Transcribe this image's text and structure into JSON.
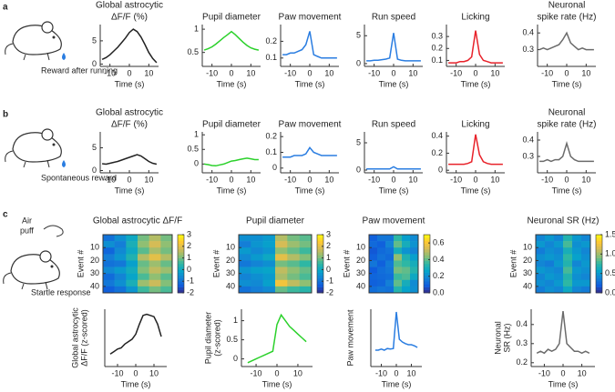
{
  "figure": {
    "panel_labels": [
      "a",
      "b",
      "c"
    ],
    "captions": [
      "Reward after running",
      "Spontaneous reward",
      "Air",
      "puff",
      "Startle response"
    ]
  },
  "chart_data": [
    {
      "type": "line",
      "title_lines": [
        "Global astrocytic",
        "ΔF/F (%)"
      ],
      "xlabel": "Time (s)",
      "x": [
        -14,
        -12,
        -10,
        -8,
        -6,
        -4,
        -2,
        0,
        2,
        4,
        6,
        8,
        10,
        12,
        14
      ],
      "xlim": [
        -15,
        15
      ],
      "xticks": [
        -10,
        0,
        10
      ],
      "ylim": [
        -0.5,
        8.5
      ],
      "yticks": [
        0,
        5
      ],
      "color": "#222222",
      "values": [
        1.0,
        1.4,
        2.0,
        2.8,
        3.6,
        4.6,
        5.6,
        6.8,
        7.5,
        7.0,
        5.8,
        4.2,
        2.5,
        1.2,
        0.3
      ]
    },
    {
      "type": "line",
      "title_lines": [
        "Pupil diameter"
      ],
      "xlabel": "Time (s)",
      "x": [
        -14,
        -12,
        -10,
        -8,
        -6,
        -4,
        -2,
        0,
        2,
        4,
        6,
        8,
        10,
        12,
        14
      ],
      "xlim": [
        -15,
        15
      ],
      "xticks": [
        -10,
        0,
        10
      ],
      "ylim": [
        0.2,
        1.1
      ],
      "yticks": [
        0.5,
        1
      ],
      "color": "#2bd12b",
      "values": [
        0.55,
        0.58,
        0.62,
        0.68,
        0.75,
        0.82,
        0.88,
        0.95,
        0.88,
        0.8,
        0.72,
        0.65,
        0.6,
        0.57,
        0.55
      ]
    },
    {
      "type": "line",
      "title_lines": [
        "Paw movement"
      ],
      "xlabel": "Time (s)",
      "x": [
        -14,
        -12,
        -10,
        -8,
        -6,
        -4,
        -2,
        0,
        2,
        4,
        6,
        8,
        10,
        12,
        14
      ],
      "xlim": [
        -15,
        15
      ],
      "xticks": [
        -10,
        0,
        10
      ],
      "ylim": [
        0.05,
        0.3
      ],
      "yticks": [
        0.1,
        0.2
      ],
      "color": "#2a7de1",
      "values": [
        0.12,
        0.12,
        0.13,
        0.13,
        0.14,
        0.15,
        0.18,
        0.26,
        0.12,
        0.11,
        0.1,
        0.1,
        0.1,
        0.1,
        0.1
      ]
    },
    {
      "type": "line",
      "title_lines": [
        "Run speed"
      ],
      "xlabel": "Time (s)",
      "x": [
        -14,
        -12,
        -10,
        -8,
        -6,
        -4,
        -2,
        0,
        2,
        4,
        6,
        8,
        10,
        12,
        14
      ],
      "xlim": [
        -15,
        15
      ],
      "xticks": [
        -10,
        0,
        10
      ],
      "ylim": [
        -0.5,
        7
      ],
      "yticks": [
        0,
        5
      ],
      "color": "#2a7de1",
      "values": [
        0.5,
        0.5,
        0.6,
        0.6,
        0.7,
        0.8,
        1.0,
        5.5,
        0.8,
        0.6,
        0.5,
        0.5,
        0.5,
        0.5,
        0.5
      ]
    },
    {
      "type": "line",
      "title_lines": [
        "Licking"
      ],
      "xlabel": "Time (s)",
      "x": [
        -14,
        -12,
        -10,
        -8,
        -6,
        -4,
        -2,
        0,
        2,
        4,
        6,
        8,
        10,
        12,
        14
      ],
      "xlim": [
        -15,
        15
      ],
      "xticks": [
        -10,
        0,
        10
      ],
      "ylim": [
        0.05,
        0.4
      ],
      "yticks": [
        0.1,
        0.2,
        0.3
      ],
      "color": "#e8222a",
      "values": [
        0.08,
        0.08,
        0.08,
        0.09,
        0.09,
        0.1,
        0.13,
        0.35,
        0.15,
        0.1,
        0.09,
        0.08,
        0.08,
        0.08,
        0.08
      ]
    },
    {
      "type": "line",
      "title_lines": [
        "Neuronal",
        "spike rate (Hz)"
      ],
      "xlabel": "Time (s)",
      "x": [
        -14,
        -12,
        -10,
        -8,
        -6,
        -4,
        -2,
        0,
        2,
        4,
        6,
        8,
        10,
        12,
        14
      ],
      "xlim": [
        -15,
        15
      ],
      "xticks": [
        -10,
        0,
        10
      ],
      "ylim": [
        0.2,
        0.45
      ],
      "yticks": [
        0.3,
        0.4
      ],
      "color": "#6b6b6b",
      "values": [
        0.3,
        0.31,
        0.3,
        0.31,
        0.32,
        0.33,
        0.36,
        0.4,
        0.34,
        0.32,
        0.3,
        0.31,
        0.3,
        0.3,
        0.3
      ]
    },
    {
      "type": "line",
      "title_lines": [
        "Global astrocytic",
        "ΔF/F (%)"
      ],
      "xlabel": "Time (s)",
      "x": [
        -14,
        -12,
        -10,
        -8,
        -6,
        -4,
        -2,
        0,
        2,
        4,
        6,
        8,
        10,
        12,
        14
      ],
      "xlim": [
        -15,
        15
      ],
      "xticks": [
        -10,
        0,
        10
      ],
      "ylim": [
        -0.5,
        8.5
      ],
      "yticks": [
        0,
        5
      ],
      "color": "#222222",
      "values": [
        1.5,
        1.4,
        1.6,
        1.8,
        2.0,
        2.3,
        2.6,
        2.9,
        3.2,
        3.5,
        3.2,
        2.6,
        2.0,
        1.6,
        1.4
      ]
    },
    {
      "type": "line",
      "title_lines": [
        "Pupil diameter"
      ],
      "xlabel": "Time (s)",
      "x": [
        -14,
        -12,
        -10,
        -8,
        -6,
        -4,
        -2,
        0,
        2,
        4,
        6,
        8,
        10,
        12,
        14
      ],
      "xlim": [
        -15,
        15
      ],
      "xticks": [
        -10,
        0,
        10
      ],
      "ylim": [
        -0.3,
        1.1
      ],
      "yticks": [
        0,
        0.5,
        1
      ],
      "color": "#2bd12b",
      "values": [
        0.0,
        -0.02,
        -0.05,
        -0.06,
        -0.03,
        0.0,
        0.05,
        0.1,
        0.12,
        0.15,
        0.18,
        0.2,
        0.18,
        0.15,
        0.15
      ]
    },
    {
      "type": "line",
      "title_lines": [
        "Paw movement"
      ],
      "xlabel": "Time (s)",
      "x": [
        -14,
        -12,
        -10,
        -8,
        -6,
        -4,
        -2,
        0,
        2,
        4,
        6,
        8,
        10,
        12,
        14
      ],
      "xlim": [
        -15,
        15
      ],
      "xticks": [
        -10,
        0,
        10
      ],
      "ylim": [
        -0.03,
        0.23
      ],
      "yticks": [
        0,
        0.1,
        0.2
      ],
      "color": "#2a7de1",
      "values": [
        0.07,
        0.07,
        0.07,
        0.08,
        0.08,
        0.08,
        0.09,
        0.13,
        0.1,
        0.09,
        0.08,
        0.08,
        0.08,
        0.08,
        0.08
      ]
    },
    {
      "type": "line",
      "title_lines": [
        "Run speed"
      ],
      "xlabel": "Time (s)",
      "x": [
        -14,
        -12,
        -10,
        -8,
        -6,
        -4,
        -2,
        0,
        2,
        4,
        6,
        8,
        10,
        12,
        14
      ],
      "xlim": [
        -15,
        15
      ],
      "xticks": [
        -10,
        0,
        10
      ],
      "ylim": [
        -0.5,
        7
      ],
      "yticks": [
        0,
        5
      ],
      "color": "#2a7de1",
      "values": [
        0.2,
        0.2,
        0.2,
        0.2,
        0.2,
        0.2,
        0.2,
        0.6,
        0.2,
        0.2,
        0.2,
        0.2,
        0.2,
        0.2,
        0.2
      ]
    },
    {
      "type": "line",
      "title_lines": [
        "Licking"
      ],
      "xlabel": "Time (s)",
      "x": [
        -14,
        -12,
        -10,
        -8,
        -6,
        -4,
        -2,
        0,
        2,
        4,
        6,
        8,
        10,
        12,
        14
      ],
      "xlim": [
        -15,
        15
      ],
      "xticks": [
        -10,
        0,
        10
      ],
      "ylim": [
        -0.03,
        0.45
      ],
      "yticks": [
        0,
        0.2,
        0.4
      ],
      "color": "#e8222a",
      "values": [
        0.07,
        0.07,
        0.07,
        0.07,
        0.07,
        0.08,
        0.1,
        0.42,
        0.18,
        0.1,
        0.08,
        0.07,
        0.07,
        0.07,
        0.07
      ]
    },
    {
      "type": "line",
      "title_lines": [
        "Neuronal",
        "spike rate (Hz)"
      ],
      "xlabel": "Time (s)",
      "x": [
        -14,
        -12,
        -10,
        -8,
        -6,
        -4,
        -2,
        0,
        2,
        4,
        6,
        8,
        10,
        12,
        14
      ],
      "xlim": [
        -15,
        15
      ],
      "xticks": [
        -10,
        0,
        10
      ],
      "ylim": [
        0.2,
        0.45
      ],
      "yticks": [
        0.3,
        0.4
      ],
      "color": "#6b6b6b",
      "values": [
        0.27,
        0.27,
        0.28,
        0.27,
        0.28,
        0.28,
        0.3,
        0.38,
        0.3,
        0.28,
        0.27,
        0.27,
        0.27,
        0.27,
        0.27
      ]
    },
    {
      "type": "heatmap",
      "title": "Global astrocytic ΔF/F",
      "ylabel": "Event #",
      "ylim": [
        0,
        45
      ],
      "yticks": [
        10,
        20,
        30,
        40
      ],
      "xlim": [
        -15,
        15
      ],
      "clim": [
        -2,
        3
      ],
      "cticks": [
        -2,
        -1,
        0,
        1,
        2,
        3
      ],
      "values": [
        [
          -1,
          -0.5,
          0,
          1,
          1.5,
          1
        ],
        [
          -0.5,
          -0.8,
          0.2,
          1.2,
          1.8,
          1.2
        ],
        [
          -1.2,
          -0.6,
          0,
          0.8,
          1.4,
          1
        ],
        [
          -0.8,
          -0.4,
          0.3,
          1.5,
          2,
          1.5
        ],
        [
          -1,
          -0.9,
          -0.2,
          0.9,
          1.3,
          0.9
        ],
        [
          -0.6,
          -0.3,
          0.1,
          1.1,
          1.6,
          1.3
        ],
        [
          -1.1,
          -0.7,
          -0.1,
          0.7,
          1.2,
          0.8
        ],
        [
          -0.9,
          -0.5,
          0.2,
          1.3,
          1.7,
          1.1
        ],
        [
          -1.3,
          -1,
          -0.4,
          0.6,
          1,
          0.7
        ]
      ]
    },
    {
      "type": "heatmap",
      "title": "Pupil diameter",
      "ylabel": "Event #",
      "ylim": [
        0,
        45
      ],
      "yticks": [
        10,
        20,
        30,
        40
      ],
      "xlim": [
        -15,
        15
      ],
      "clim": [
        -2,
        3
      ],
      "cticks": [
        -2,
        -1,
        0,
        1,
        2,
        3
      ],
      "values": [
        [
          -0.5,
          -0.5,
          -0.3,
          1.5,
          1,
          0.8
        ],
        [
          -0.8,
          -0.4,
          -0.2,
          1.8,
          1.3,
          1
        ],
        [
          -0.3,
          -0.6,
          -0.4,
          1.2,
          0.9,
          0.6
        ],
        [
          -0.6,
          -0.3,
          0,
          2,
          1.5,
          1.1
        ],
        [
          -0.9,
          -0.7,
          -0.5,
          1,
          0.8,
          0.5
        ],
        [
          -0.4,
          -0.2,
          -0.1,
          1.6,
          1.2,
          0.9
        ],
        [
          -0.7,
          -0.5,
          -0.3,
          1.4,
          1,
          0.7
        ],
        [
          -0.5,
          -0.6,
          -0.2,
          2.2,
          1.6,
          1.2
        ],
        [
          -1,
          -0.8,
          -0.6,
          0.9,
          0.6,
          0.4
        ]
      ]
    },
    {
      "type": "heatmap",
      "title": "Paw movement",
      "ylabel": "Event #",
      "ylim": [
        0,
        45
      ],
      "yticks": [
        10,
        20,
        30,
        40
      ],
      "xlim": [
        -15,
        15
      ],
      "clim": [
        0,
        0.7
      ],
      "cticks": [
        {
          "value": 0,
          "label": "0.0"
        },
        0.2,
        0.4,
        0.6
      ],
      "values": [
        [
          0.1,
          0.15,
          0.15,
          0.35,
          0.25,
          0.2
        ],
        [
          0.12,
          0.1,
          0.18,
          0.4,
          0.3,
          0.22
        ],
        [
          0.08,
          0.12,
          0.14,
          0.3,
          0.22,
          0.18
        ],
        [
          0.1,
          0.14,
          0.12,
          0.45,
          0.32,
          0.25
        ],
        [
          0.15,
          0.1,
          0.16,
          0.38,
          0.35,
          0.3
        ],
        [
          0.09,
          0.13,
          0.15,
          0.42,
          0.4,
          0.33
        ],
        [
          0.11,
          0.12,
          0.13,
          0.36,
          0.38,
          0.28
        ],
        [
          0.1,
          0.11,
          0.17,
          0.4,
          0.3,
          0.2
        ],
        [
          0.13,
          0.15,
          0.14,
          0.33,
          0.26,
          0.21
        ]
      ]
    },
    {
      "type": "heatmap",
      "title": "Neuronal SR (Hz)",
      "ylabel": "Event #",
      "ylim": [
        0,
        45
      ],
      "yticks": [
        10,
        20,
        30,
        40
      ],
      "xlim": [
        -15,
        15
      ],
      "clim": [
        0,
        1.5
      ],
      "cticks": [
        {
          "value": 0,
          "label": "0.0"
        },
        0.5,
        {
          "value": 1,
          "label": "1.0"
        },
        1.5
      ],
      "values": [
        [
          0.4,
          0.5,
          0.4,
          0.7,
          0.5,
          0.4
        ],
        [
          0.5,
          0.4,
          0.5,
          0.8,
          0.45,
          0.5
        ],
        [
          0.35,
          0.45,
          0.4,
          0.65,
          0.5,
          0.4
        ],
        [
          0.45,
          0.5,
          0.45,
          0.75,
          0.55,
          0.45
        ],
        [
          0.4,
          0.35,
          0.5,
          0.7,
          0.4,
          0.5
        ],
        [
          0.5,
          0.45,
          0.4,
          0.8,
          0.5,
          0.45
        ],
        [
          0.4,
          0.5,
          0.45,
          0.7,
          0.45,
          0.4
        ],
        [
          0.45,
          0.4,
          0.5,
          0.75,
          0.5,
          0.5
        ],
        [
          0.35,
          0.45,
          0.4,
          0.6,
          0.4,
          0.35
        ]
      ]
    },
    {
      "type": "line",
      "ylabel_lines": [
        "Global astrocytic",
        "ΔF/F (z-scored)"
      ],
      "xlabel": "Time (s)",
      "x": [
        -14,
        -12,
        -10,
        -8,
        -6,
        -4,
        -2,
        0,
        2,
        4,
        6,
        8,
        10,
        12,
        14
      ],
      "xlim": [
        -17,
        17
      ],
      "xticks": [
        -10,
        0,
        10
      ],
      "ylim": [
        -1.2,
        1.1
      ],
      "yticks": [],
      "color": "#222222",
      "values": [
        -0.7,
        -0.6,
        -0.5,
        -0.45,
        -0.3,
        -0.2,
        -0.1,
        0.1,
        0.5,
        0.85,
        0.9,
        0.85,
        0.8,
        0.5,
        0.0
      ]
    },
    {
      "type": "line",
      "ylabel_lines": [
        "Pupil diameter",
        "(z-scored)"
      ],
      "xlabel": "Time (s)",
      "x": [
        -14,
        -12,
        -10,
        -8,
        -6,
        -4,
        -2,
        0,
        2,
        4,
        6,
        8,
        10,
        12,
        14
      ],
      "xlim": [
        -17,
        17
      ],
      "xticks": [
        -10,
        0,
        10
      ],
      "ylim": [
        -0.2,
        1.3
      ],
      "yticks": [
        0,
        0.5,
        1
      ],
      "color": "#2bd12b",
      "values": [
        -0.1,
        -0.05,
        0.0,
        0.05,
        0.1,
        0.15,
        0.2,
        0.9,
        1.15,
        1.0,
        0.85,
        0.75,
        0.65,
        0.55,
        0.45
      ]
    },
    {
      "type": "line",
      "ylabel_lines": [
        "Paw movement"
      ],
      "xlabel": "Time (s)",
      "x": [
        -14,
        -12,
        -10,
        -8,
        -6,
        -4,
        -2,
        0,
        2,
        4,
        6,
        8,
        10,
        12,
        14
      ],
      "xlim": [
        -17,
        17
      ],
      "xticks": [
        -10,
        0,
        10
      ],
      "ylim": [
        0,
        1.05
      ],
      "yticks": [],
      "color": "#2a7de1",
      "values": [
        0.3,
        0.3,
        0.32,
        0.3,
        0.33,
        0.32,
        0.33,
        1.0,
        0.5,
        0.45,
        0.42,
        0.4,
        0.4,
        0.38,
        0.35
      ]
    },
    {
      "type": "line",
      "ylabel_lines": [
        "Neuronal",
        "SR (Hz)"
      ],
      "xlabel": "Time (s)",
      "x": [
        -14,
        -12,
        -10,
        -8,
        -6,
        -4,
        -2,
        0,
        2,
        4,
        6,
        8,
        10,
        12,
        14
      ],
      "xlim": [
        -17,
        17
      ],
      "xticks": [
        -10,
        0,
        10
      ],
      "ylim": [
        0.18,
        0.48
      ],
      "yticks": [
        0.2,
        0.3,
        0.4
      ],
      "color": "#6b6b6b",
      "values": [
        0.25,
        0.26,
        0.25,
        0.27,
        0.26,
        0.27,
        0.3,
        0.47,
        0.3,
        0.28,
        0.26,
        0.26,
        0.25,
        0.26,
        0.25
      ]
    }
  ]
}
